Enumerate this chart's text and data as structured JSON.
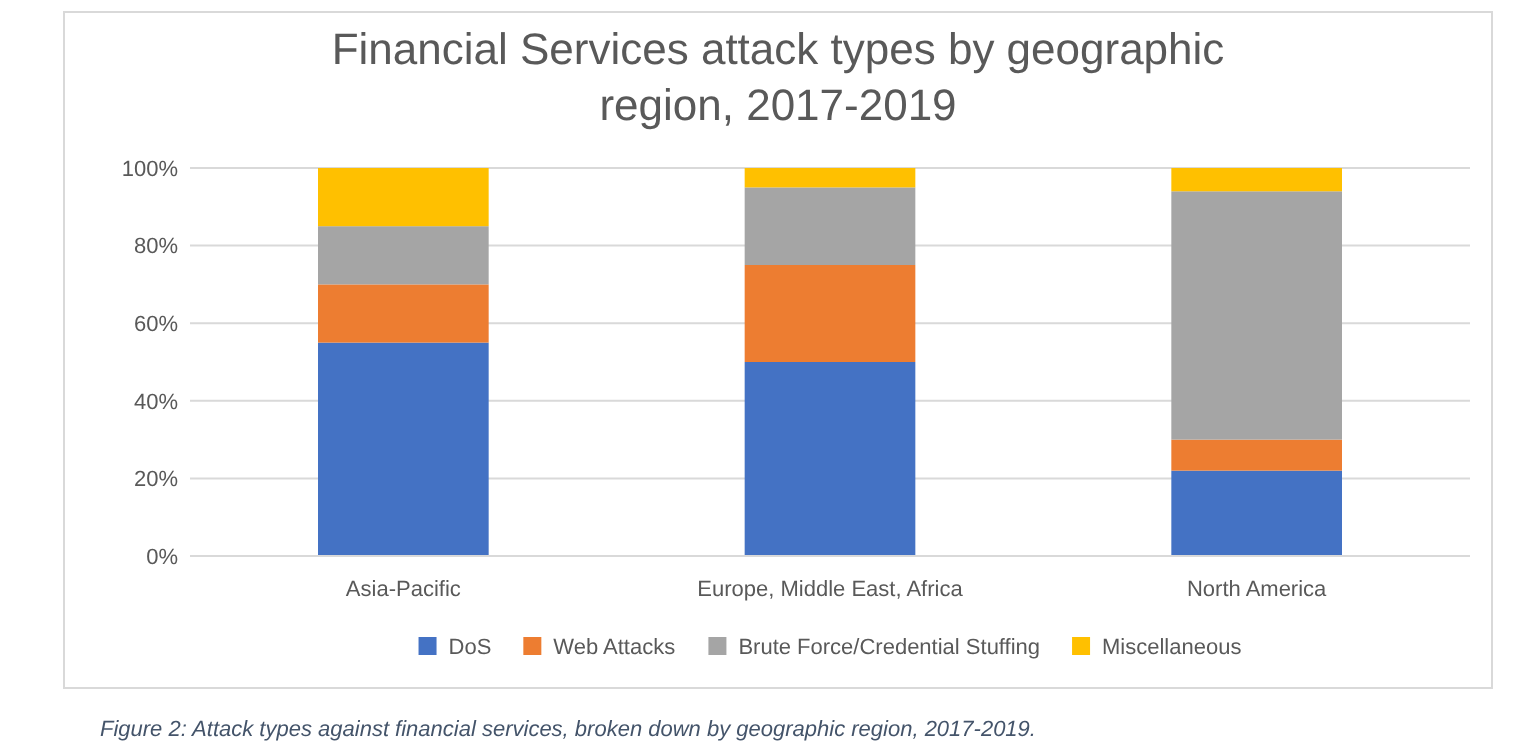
{
  "chart_data": {
    "type": "bar",
    "stacked": true,
    "title": "Financial Services attack types by geographic region, 2017-2019",
    "categories": [
      "Asia-Pacific",
      "Europe, Middle East, Africa",
      "North America"
    ],
    "series": [
      {
        "name": "DoS",
        "color": "#4472c4",
        "values": [
          55,
          50,
          22
        ]
      },
      {
        "name": "Web Attacks",
        "color": "#ed7d31",
        "values": [
          15,
          25,
          8
        ]
      },
      {
        "name": "Brute Force/Credential Stuffing",
        "color": "#a5a5a5",
        "values": [
          15,
          20,
          64
        ]
      },
      {
        "name": "Miscellaneous",
        "color": "#ffc000",
        "values": [
          15,
          5,
          6
        ]
      }
    ],
    "ylim": [
      0,
      100
    ],
    "yticks": [
      {
        "value": 0,
        "label": "0%"
      },
      {
        "value": 20,
        "label": "20%"
      },
      {
        "value": 40,
        "label": "40%"
      },
      {
        "value": 60,
        "label": "60%"
      },
      {
        "value": 80,
        "label": "80%"
      },
      {
        "value": 100,
        "label": "100%"
      }
    ],
    "grid": "y",
    "legend": "bottom",
    "annotations": [
      "Figure 2: Attack types against financial services, broken down by geographic region, 2017-2019."
    ]
  }
}
